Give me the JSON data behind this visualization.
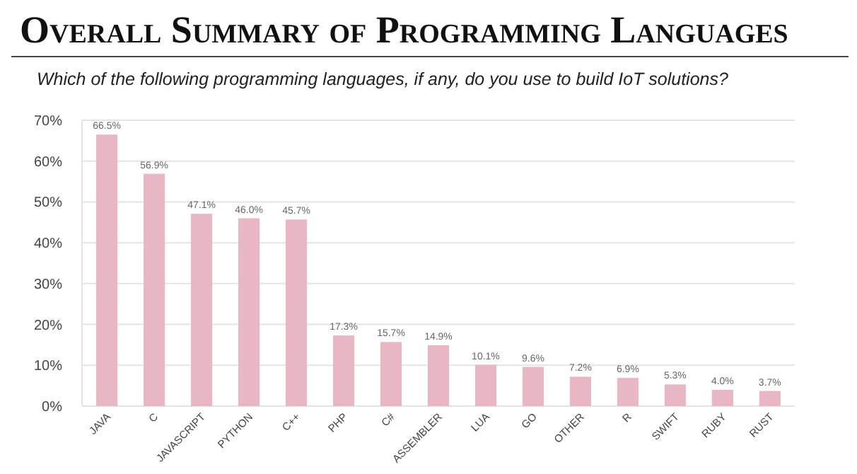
{
  "chart_data": {
    "type": "bar",
    "title": "Overall Summary of Programming Languages",
    "subtitle": "Which of the following programming languages, if any, do you use to build IoT solutions?",
    "categories": [
      "JAVA",
      "C",
      "JAVASCRIPT",
      "PYTHON",
      "C++",
      "PHP",
      "C#",
      "ASSEMBLER",
      "LUA",
      "GO",
      "OTHER",
      "R",
      "SWIFT",
      "RUBY",
      "RUST"
    ],
    "values": [
      66.5,
      56.9,
      47.1,
      46.0,
      45.7,
      17.3,
      15.7,
      14.9,
      10.1,
      9.6,
      7.2,
      6.9,
      5.3,
      4.0,
      3.7
    ],
    "value_labels": [
      "66.5%",
      "56.9%",
      "47.1%",
      "46.0%",
      "45.7%",
      "17.3%",
      "15.7%",
      "14.9%",
      "10.1%",
      "9.6%",
      "7.2%",
      "6.9%",
      "5.3%",
      "4.0%",
      "3.7%"
    ],
    "color": "#e9b7c3",
    "ylim": [
      0,
      70
    ],
    "yticks": [
      {
        "value": 0,
        "label": "0%"
      },
      {
        "value": 10,
        "label": "10%"
      },
      {
        "value": 20,
        "label": "20%"
      },
      {
        "value": 30,
        "label": "30%"
      },
      {
        "value": 40,
        "label": "40%"
      },
      {
        "value": 50,
        "label": "50%"
      },
      {
        "value": 60,
        "label": "60%"
      },
      {
        "value": 70,
        "label": "70%"
      }
    ],
    "grid": "y"
  }
}
